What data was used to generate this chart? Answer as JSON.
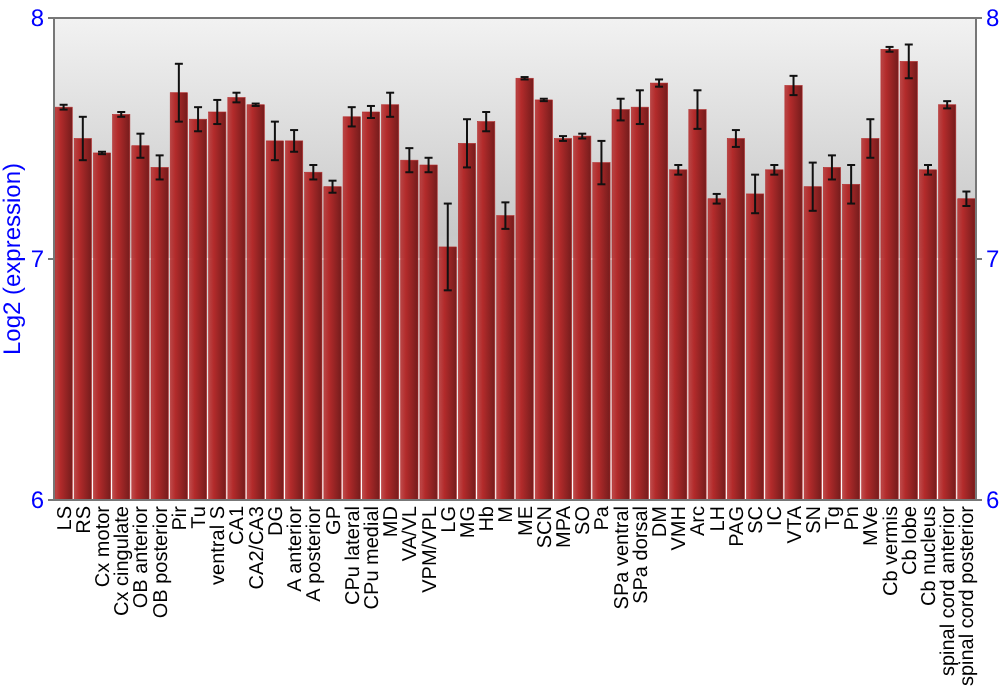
{
  "chart_data": {
    "type": "bar",
    "ylabel": "Log2 (expression)",
    "categories": [
      "LS",
      "RS",
      "Cx motor",
      "Cx cingulate",
      "OB anterior",
      "OB posterior",
      "Pir",
      "Tu",
      "ventral S",
      "CA1",
      "CA2/CA3",
      "DG",
      "A anterior",
      "A posterior",
      "GP",
      "CPu lateral",
      "CPu medial",
      "MD",
      "VA/VL",
      "VPM/VPL",
      "LG",
      "MG",
      "Hb",
      "M",
      "ME",
      "SCN",
      "MPA",
      "SO",
      "Pa",
      "SPa ventral",
      "SPa dorsal",
      "DM",
      "VMH",
      "Arc",
      "LH",
      "PAG",
      "SC",
      "IC",
      "VTA",
      "SN",
      "Tg",
      "Pn",
      "MVe",
      "Cb vermis",
      "Cb lobe",
      "Cb nucleus",
      "spinal cord anterior",
      "spinal cord posterior"
    ],
    "values": [
      7.63,
      7.5,
      7.44,
      7.6,
      7.47,
      7.38,
      7.69,
      7.58,
      7.61,
      7.67,
      7.64,
      7.49,
      7.49,
      7.36,
      7.3,
      7.59,
      7.61,
      7.64,
      7.41,
      7.39,
      7.05,
      7.48,
      7.57,
      7.18,
      7.75,
      7.66,
      7.5,
      7.51,
      7.4,
      7.62,
      7.63,
      7.73,
      7.37,
      7.62,
      7.25,
      7.5,
      7.27,
      7.37,
      7.72,
      7.3,
      7.38,
      7.31,
      7.5,
      7.87,
      7.82,
      7.37,
      7.64,
      7.25
    ],
    "errors": [
      0.01,
      0.09,
      0.005,
      0.01,
      0.05,
      0.05,
      0.12,
      0.05,
      0.05,
      0.02,
      0.005,
      0.08,
      0.045,
      0.03,
      0.025,
      0.04,
      0.025,
      0.05,
      0.05,
      0.03,
      0.18,
      0.1,
      0.04,
      0.055,
      0.005,
      0.005,
      0.01,
      0.01,
      0.09,
      0.045,
      0.07,
      0.015,
      0.02,
      0.08,
      0.02,
      0.035,
      0.08,
      0.02,
      0.04,
      0.1,
      0.05,
      0.08,
      0.08,
      0.01,
      0.07,
      0.02,
      0.015,
      0.03
    ],
    "color": "#b32b2b",
    "ylim": [
      6,
      8
    ],
    "yticks": [
      6,
      7,
      8
    ],
    "y2lim": [
      6,
      8
    ],
    "y2ticks": [
      6,
      7,
      8
    ],
    "grid": "y"
  }
}
